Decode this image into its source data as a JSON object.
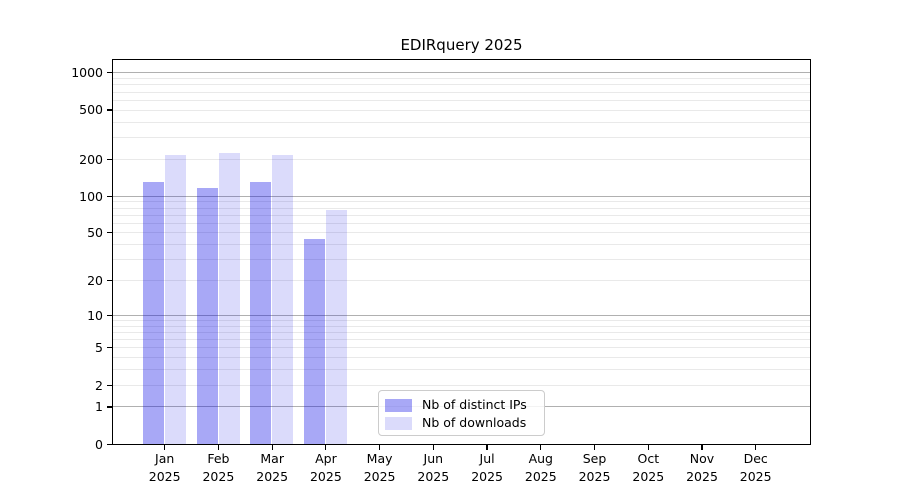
{
  "title": "EDIRquery 2025",
  "chart_data": {
    "type": "bar",
    "title": "EDIRquery 2025",
    "categories": [
      "Jan",
      "Feb",
      "Mar",
      "Apr",
      "May",
      "Jun",
      "Jul",
      "Aug",
      "Sep",
      "Oct",
      "Nov",
      "Dec"
    ],
    "x_sublabel": "2025",
    "series": [
      {
        "name": "Nb of distinct IPs",
        "color": "rgba(0,0,230,0.34)",
        "values": [
          130,
          116,
          130,
          44,
          0,
          0,
          0,
          0,
          0,
          0,
          0,
          0
        ]
      },
      {
        "name": "Nb of downloads",
        "color": "rgba(0,0,230,0.14)",
        "values": [
          215,
          222,
          215,
          76,
          0,
          0,
          0,
          0,
          0,
          0,
          0,
          0
        ]
      }
    ],
    "yscale": "log1p",
    "yticks": [
      0,
      1,
      2,
      5,
      10,
      20,
      50,
      100,
      200,
      500,
      1000
    ],
    "ylim": [
      0,
      1268
    ],
    "xlabel": "",
    "ylabel": "",
    "grid": "on",
    "legend_position": "lower-center",
    "colors": {
      "major_grid": "#b0b0b0",
      "minor_grid": "#e9e9e9",
      "spine": "#000000",
      "text": "#000000",
      "background": "#ffffff"
    }
  }
}
